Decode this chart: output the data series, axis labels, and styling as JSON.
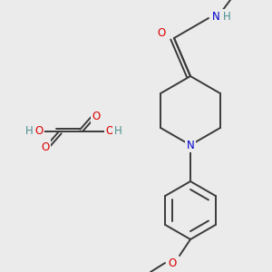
{
  "bg_color": "#ebebeb",
  "bond_color": "#3a3a3a",
  "bond_width": 1.4,
  "atom_colors": {
    "O": "#dd0000",
    "N": "#0000cc",
    "H": "#4a9090",
    "C": "#3a3a3a"
  },
  "font_size": 8.5,
  "fig_width": 3.0,
  "fig_height": 3.0,
  "dpi": 100
}
